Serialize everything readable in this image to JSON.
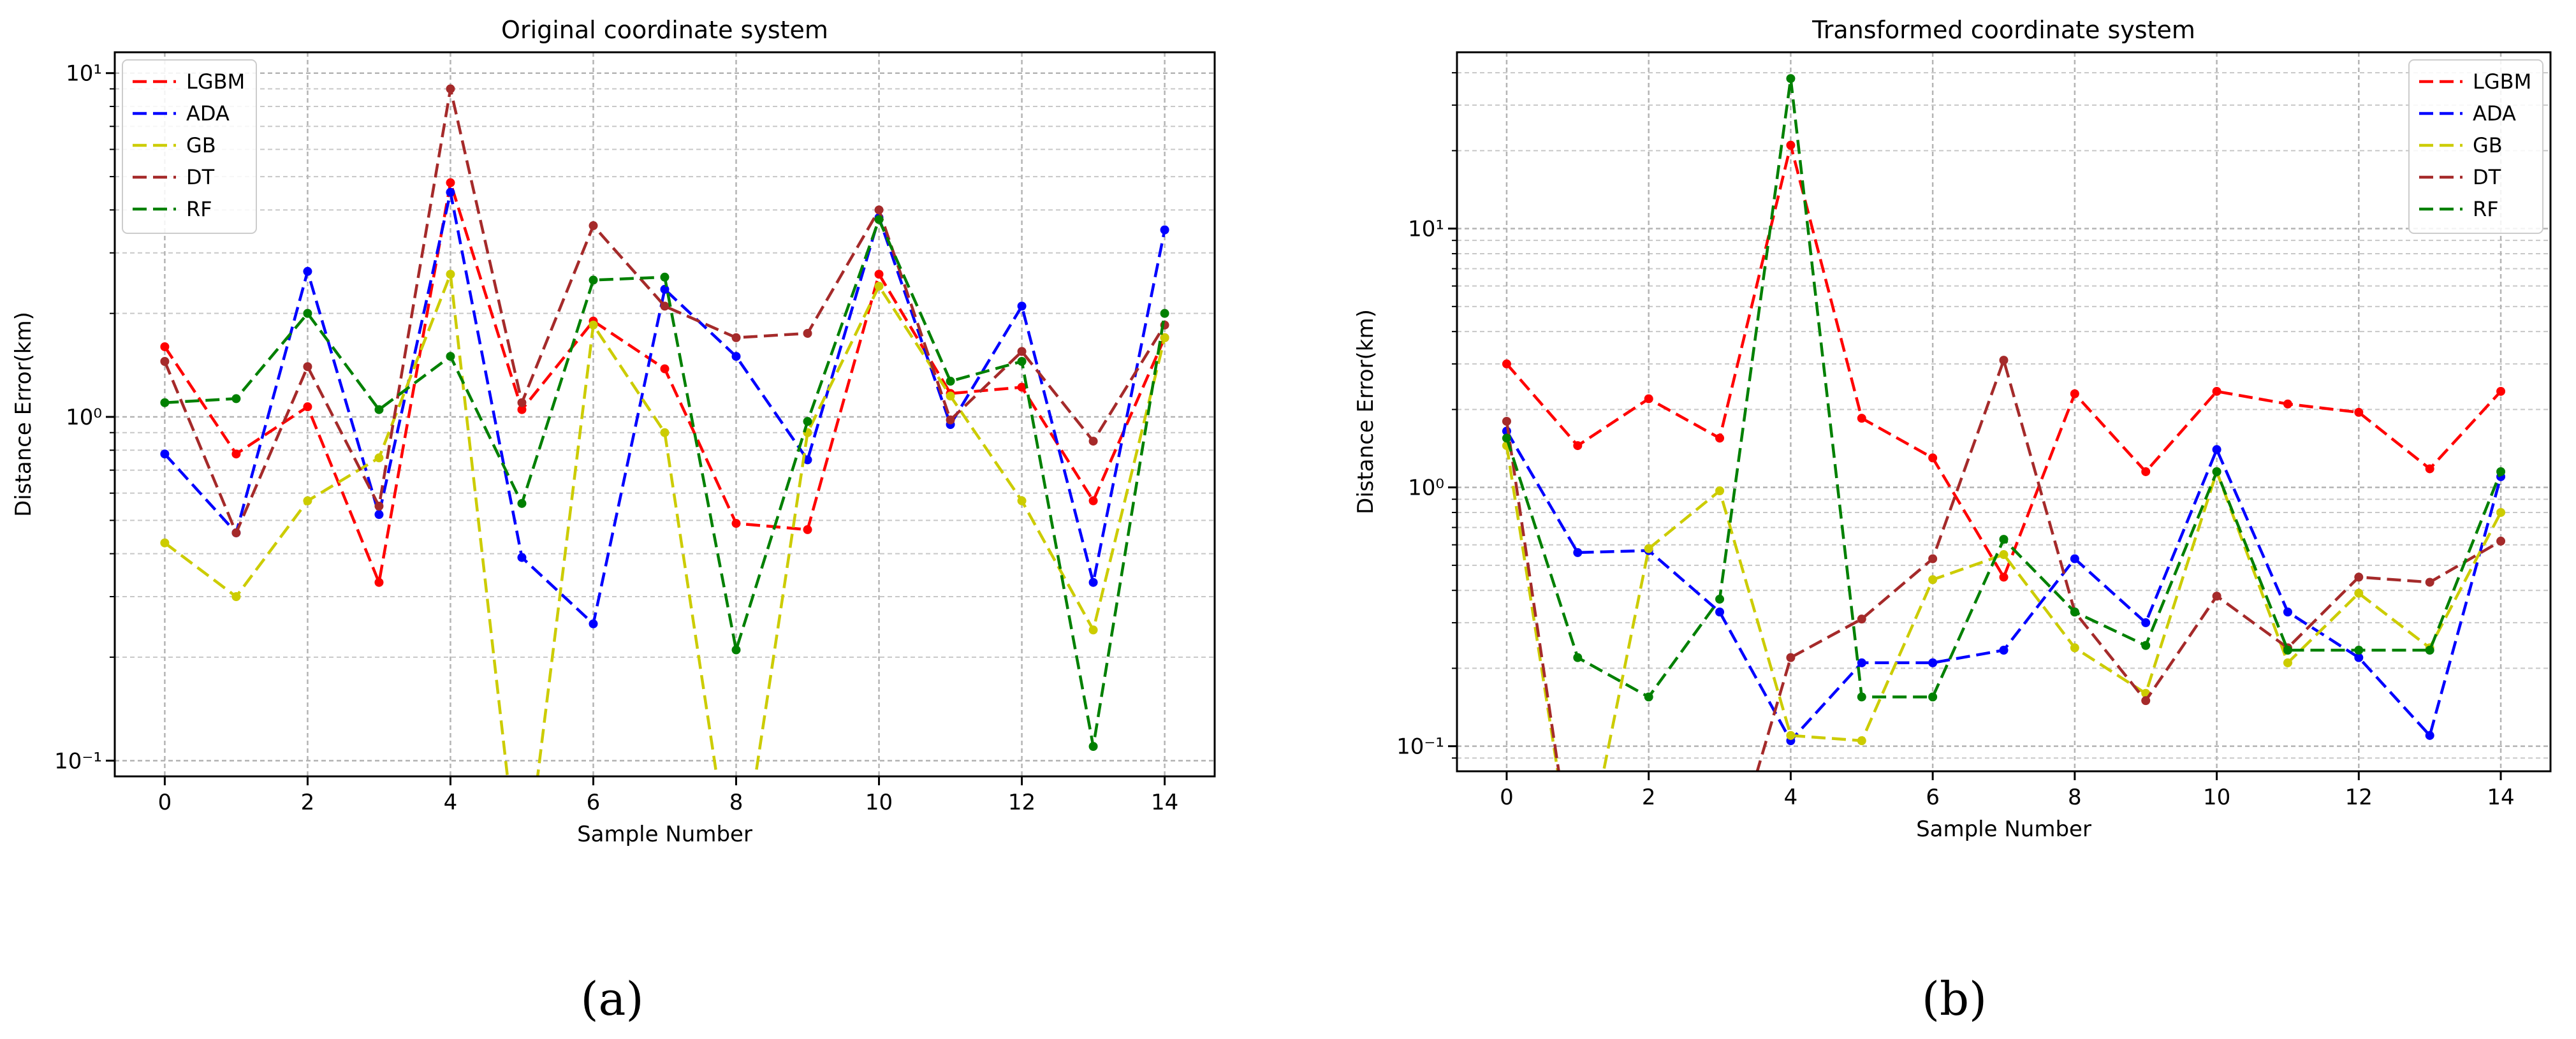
{
  "panel_labels": [
    "(a)",
    "(b)"
  ],
  "series_colors": {
    "LGBM": "#ff0000",
    "ADA": "#0000ff",
    "GB": "#cccc00",
    "DT": "#a52a2a",
    "RF": "#008000"
  },
  "chart_data": [
    {
      "type": "line",
      "title": "Original coordinate system",
      "xlabel": "Sample Number",
      "ylabel": "Distance Error(km)",
      "xlim": [
        -0.7,
        14.7
      ],
      "ylim": [
        0.09,
        11.5
      ],
      "yscale": "log",
      "grid": true,
      "legend": "top-left",
      "x": [
        0,
        1,
        2,
        3,
        4,
        5,
        6,
        7,
        8,
        9,
        10,
        11,
        12,
        13,
        14
      ],
      "x_ticks": [
        0,
        2,
        4,
        6,
        8,
        10,
        12,
        14
      ],
      "x_tick_labels": [
        "0",
        "2",
        "4",
        "6",
        "8",
        "10",
        "12",
        "14"
      ],
      "y_ticks": [
        0.1,
        1,
        10
      ],
      "y_tick_labels": [
        "10⁻¹",
        "10⁰",
        "10¹"
      ],
      "series": [
        {
          "name": "LGBM",
          "values": [
            1.6,
            0.78,
            1.07,
            0.33,
            4.8,
            1.05,
            1.9,
            1.38,
            0.49,
            0.47,
            2.6,
            1.17,
            1.22,
            0.57,
            1.7
          ]
        },
        {
          "name": "ADA",
          "values": [
            0.78,
            0.46,
            2.65,
            0.52,
            4.5,
            0.39,
            0.25,
            2.35,
            1.5,
            0.75,
            3.8,
            0.95,
            2.1,
            0.33,
            3.5
          ]
        },
        {
          "name": "GB",
          "values": [
            0.43,
            0.3,
            0.57,
            0.76,
            2.6,
            0.0,
            1.85,
            0.9,
            0.0,
            0.9,
            2.4,
            1.15,
            0.57,
            0.24,
            1.7
          ]
        },
        {
          "name": "DT",
          "values": [
            1.45,
            0.46,
            1.4,
            0.55,
            9.0,
            1.1,
            3.6,
            2.1,
            1.7,
            1.75,
            4.0,
            0.98,
            1.55,
            0.85,
            1.85
          ]
        },
        {
          "name": "RF",
          "values": [
            1.1,
            1.13,
            2.0,
            1.05,
            1.5,
            0.56,
            2.5,
            2.55,
            0.21,
            0.97,
            3.75,
            1.27,
            1.45,
            0.11,
            2.0
          ]
        }
      ]
    },
    {
      "type": "line",
      "title": "Transformed coordinate system",
      "xlabel": "Sample Number",
      "ylabel": "Distance Error(km)",
      "xlim": [
        -0.7,
        14.7
      ],
      "ylim": [
        0.08,
        48
      ],
      "yscale": "log",
      "grid": true,
      "legend": "top-right",
      "x": [
        0,
        1,
        2,
        3,
        4,
        5,
        6,
        7,
        8,
        9,
        10,
        11,
        12,
        13,
        14
      ],
      "x_ticks": [
        0,
        2,
        4,
        6,
        8,
        10,
        12,
        14
      ],
      "x_tick_labels": [
        "0",
        "2",
        "4",
        "6",
        "8",
        "10",
        "12",
        "14"
      ],
      "y_ticks": [
        0.1,
        1,
        10
      ],
      "y_tick_labels": [
        "10⁻¹",
        "10⁰",
        "10¹"
      ],
      "series": [
        {
          "name": "LGBM",
          "values": [
            3.0,
            1.45,
            2.2,
            1.55,
            21.0,
            1.85,
            1.3,
            0.45,
            2.3,
            1.15,
            2.35,
            2.1,
            1.95,
            1.18,
            2.35
          ]
        },
        {
          "name": "ADA",
          "values": [
            1.65,
            0.56,
            0.57,
            0.33,
            0.105,
            0.21,
            0.21,
            0.235,
            0.53,
            0.3,
            1.4,
            0.33,
            0.22,
            0.11,
            1.1
          ]
        },
        {
          "name": "GB",
          "values": [
            1.45,
            0.0,
            0.58,
            0.97,
            0.11,
            0.105,
            0.44,
            0.55,
            0.24,
            0.16,
            1.15,
            0.21,
            0.39,
            0.24,
            0.8
          ]
        },
        {
          "name": "DT",
          "values": [
            1.8,
            0.0,
            0.0,
            0.0,
            0.22,
            0.31,
            0.53,
            3.1,
            0.33,
            0.15,
            0.38,
            0.24,
            0.45,
            0.43,
            0.62
          ]
        },
        {
          "name": "RF",
          "values": [
            1.55,
            0.22,
            0.155,
            0.37,
            38.0,
            0.155,
            0.155,
            0.63,
            0.33,
            0.245,
            1.15,
            0.235,
            0.235,
            0.235,
            1.15
          ]
        }
      ]
    }
  ]
}
